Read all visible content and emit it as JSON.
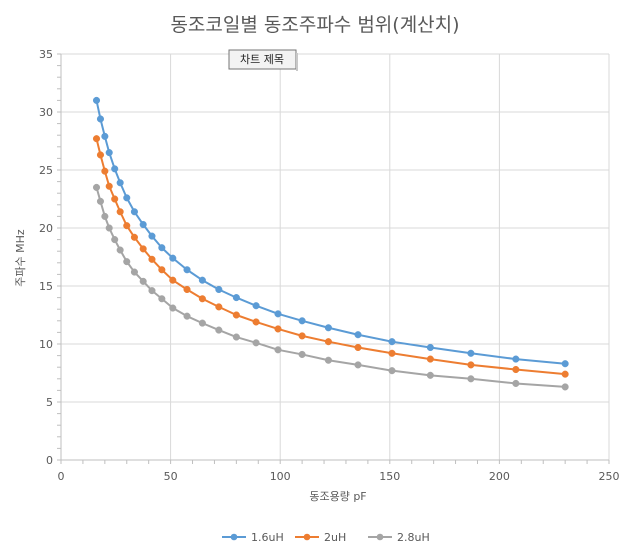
{
  "chart_data": {
    "type": "scatter",
    "title": "동조코일별 동조주파수 범위(계산치)",
    "xlabel": "동조용량 pF",
    "ylabel": "주파수 MHz",
    "xlim": [
      0,
      250
    ],
    "ylim": [
      0,
      35
    ],
    "x_ticks": [
      0,
      50,
      100,
      150,
      200,
      250
    ],
    "y_ticks": [
      0,
      5,
      10,
      15,
      20,
      25,
      30,
      35
    ],
    "grid": true,
    "legend_position": "bottom",
    "tooltip": "차트 제목",
    "x": [
      16.2,
      18,
      20,
      22,
      24.5,
      27,
      30,
      33.5,
      37.5,
      41.5,
      46,
      51,
      57.5,
      64.5,
      72,
      80,
      89,
      99,
      110,
      122,
      135.5,
      151,
      168.5,
      187,
      207.5,
      230
    ],
    "series": [
      {
        "name": "1.6uH",
        "color": "#5b9bd5",
        "values": [
          31.0,
          29.4,
          27.9,
          26.5,
          25.1,
          23.9,
          22.6,
          21.4,
          20.3,
          19.3,
          18.3,
          17.4,
          16.4,
          15.5,
          14.7,
          14.0,
          13.3,
          12.6,
          12.0,
          11.4,
          10.8,
          10.2,
          9.7,
          9.2,
          8.7,
          8.3
        ]
      },
      {
        "name": "2uH",
        "color": "#ed7d31",
        "values": [
          27.7,
          26.3,
          24.9,
          23.6,
          22.5,
          21.4,
          20.2,
          19.2,
          18.2,
          17.3,
          16.4,
          15.5,
          14.7,
          13.9,
          13.2,
          12.5,
          11.9,
          11.3,
          10.7,
          10.2,
          9.7,
          9.2,
          8.7,
          8.2,
          7.8,
          7.4
        ]
      },
      {
        "name": "2.8uH",
        "color": "#a5a5a5",
        "values": [
          23.5,
          22.3,
          21.0,
          20.0,
          19.0,
          18.1,
          17.1,
          16.2,
          15.4,
          14.6,
          13.9,
          13.1,
          12.4,
          11.8,
          11.2,
          10.6,
          10.1,
          9.5,
          9.1,
          8.6,
          8.2,
          7.7,
          7.3,
          7.0,
          6.6,
          6.3
        ]
      }
    ]
  }
}
